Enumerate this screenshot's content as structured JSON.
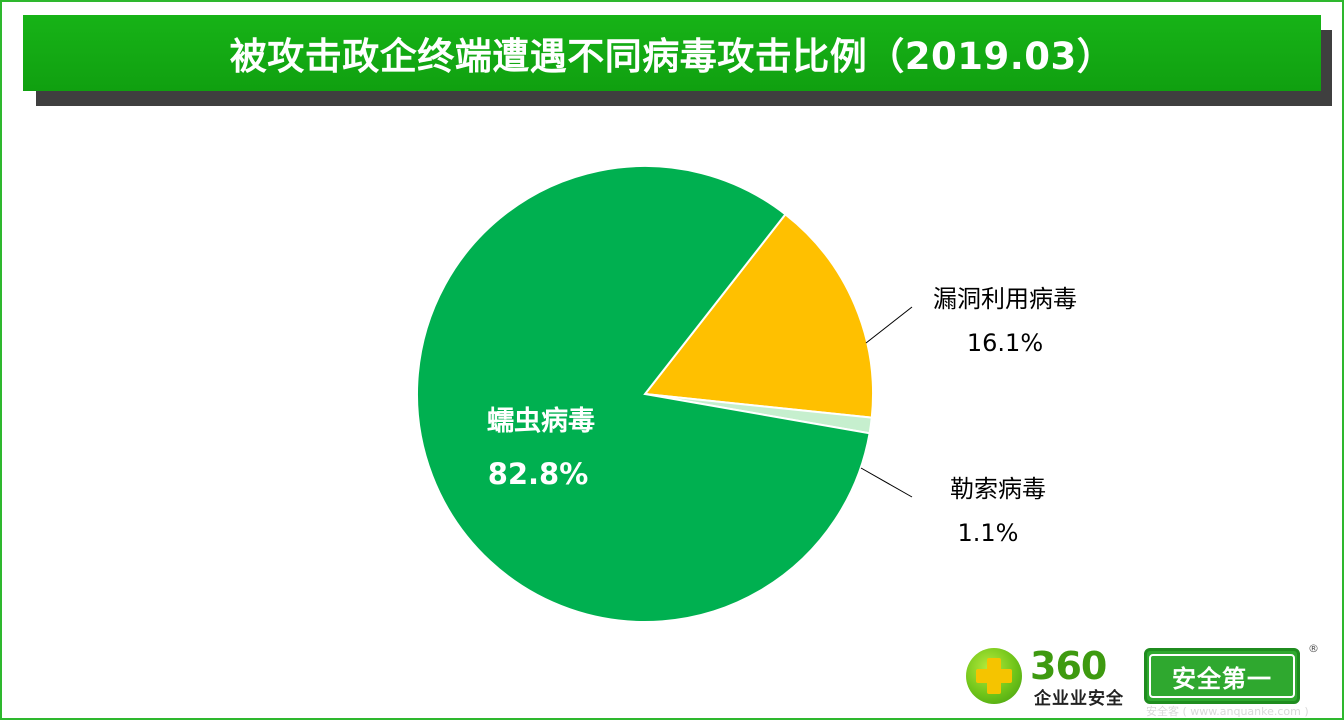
{
  "title": "被攻击政企终端遭遇不同病毒攻击比例（2019.03）",
  "chart_data": {
    "type": "pie",
    "title": "被攻击政企终端遭遇不同病毒攻击比例（2019.03）",
    "categories": [
      "漏洞利用病毒",
      "勒索病毒",
      "蠕虫病毒"
    ],
    "values": [
      16.1,
      1.1,
      82.8
    ],
    "value_labels": [
      "16.1%",
      "1.1%",
      "82.8%"
    ],
    "colors": [
      "#ffc000",
      "#c6efce",
      "#00b050"
    ],
    "label_colors": [
      "#000000",
      "#000000",
      "#ffffff"
    ],
    "start_angle_deg": -52
  },
  "logo": {
    "brand_number": "360",
    "brand_sub": "企业业安全",
    "badge": "安全第一",
    "reg_mark": "®"
  },
  "watermark": "安全客 ( www.anquanke.com )"
}
